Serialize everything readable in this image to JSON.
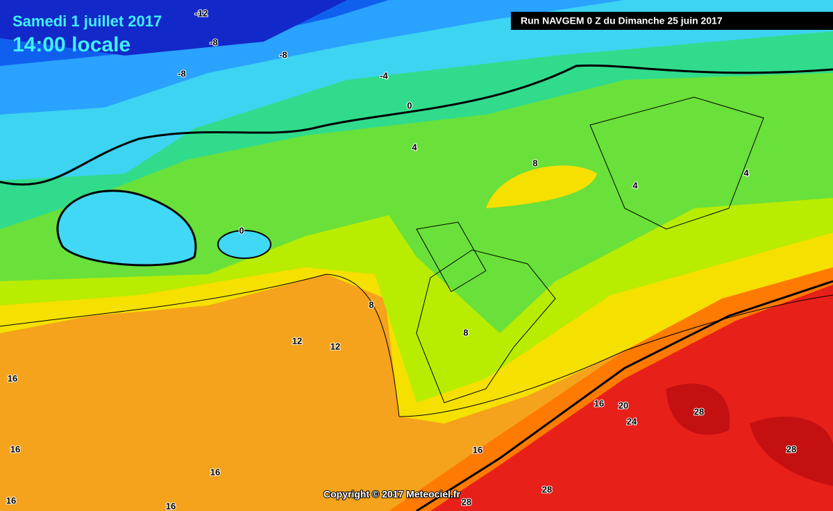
{
  "header": {
    "date": "Samedi 1 juillet 2017",
    "time": "14:00 locale",
    "run": "Run NAVGEM 0 Z du Dimanche 25 juin 2017"
  },
  "contour_labels": [
    -12,
    -8,
    -8,
    -8,
    -4,
    0,
    4,
    8,
    4,
    4,
    0,
    8,
    12,
    12,
    8,
    16,
    16,
    16,
    16,
    16,
    16,
    16,
    20,
    24,
    28,
    28,
    28,
    28
  ],
  "copyright": "Copyright © 2017 Meteociel.fr"
}
